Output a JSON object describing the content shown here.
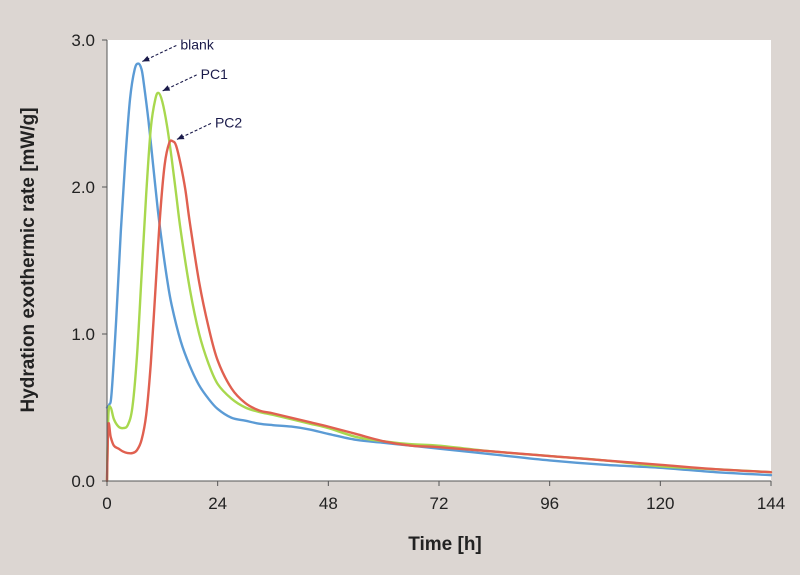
{
  "chart_data": {
    "type": "line",
    "title": "",
    "xlabel": "Time [h]",
    "ylabel": "Hydration exothermic rate [mW/g]",
    "xlim": [
      0,
      144
    ],
    "ylim": [
      0,
      3.0
    ],
    "xticks": [
      0,
      24,
      48,
      72,
      96,
      120,
      144
    ],
    "xtick_labels": [
      "0",
      "24",
      "48",
      "72",
      "96",
      "120",
      "144"
    ],
    "yticks": [
      0,
      1.0,
      2.0,
      3.0
    ],
    "ytick_labels": [
      "0.0",
      "1.0",
      "2.0",
      "3.0"
    ],
    "grid": false,
    "background": "#dcd6d2",
    "plot_background": "#ffffff",
    "series": [
      {
        "name": "blank",
        "color": "#5b9bd5",
        "x": [
          0,
          0.5,
          1,
          2,
          3,
          4,
          5,
          6,
          6.8,
          7.5,
          8,
          9,
          10,
          11,
          12,
          13,
          14,
          16,
          18,
          20,
          22,
          24,
          27,
          30,
          33,
          36,
          40,
          44,
          48,
          54,
          60,
          66,
          72,
          84,
          96,
          108,
          120,
          132,
          144
        ],
        "y": [
          0.5,
          0.52,
          0.6,
          1.1,
          1.7,
          2.2,
          2.6,
          2.8,
          2.84,
          2.8,
          2.7,
          2.45,
          2.15,
          1.85,
          1.6,
          1.38,
          1.2,
          0.95,
          0.78,
          0.65,
          0.56,
          0.49,
          0.43,
          0.41,
          0.39,
          0.38,
          0.37,
          0.35,
          0.32,
          0.28,
          0.26,
          0.24,
          0.22,
          0.18,
          0.14,
          0.11,
          0.09,
          0.06,
          0.04
        ]
      },
      {
        "name": "PC1",
        "color": "#a8d84e",
        "x": [
          0,
          0.3,
          0.8,
          1.5,
          2.5,
          3.5,
          4.5,
          5.5,
          6.5,
          7.5,
          8.5,
          9.5,
          10.5,
          11.2,
          12,
          13,
          14,
          15,
          16,
          18,
          20,
          22,
          24,
          27,
          30,
          33,
          36,
          40,
          44,
          48,
          54,
          60,
          66,
          72,
          84,
          96,
          108,
          120,
          132,
          144
        ],
        "y": [
          0,
          0.45,
          0.5,
          0.42,
          0.37,
          0.36,
          0.38,
          0.5,
          0.85,
          1.4,
          1.95,
          2.4,
          2.6,
          2.64,
          2.58,
          2.42,
          2.2,
          1.95,
          1.7,
          1.3,
          1.0,
          0.8,
          0.66,
          0.56,
          0.5,
          0.47,
          0.45,
          0.42,
          0.39,
          0.36,
          0.3,
          0.27,
          0.25,
          0.24,
          0.2,
          0.17,
          0.14,
          0.1,
          0.08,
          0.06
        ]
      },
      {
        "name": "PC2",
        "color": "#e06050",
        "x": [
          0,
          0.3,
          0.8,
          1.5,
          2.5,
          3.5,
          4.5,
          5.5,
          6.5,
          7.5,
          8.5,
          9.5,
          10.5,
          11.5,
          12.5,
          13.5,
          14.3,
          15,
          16,
          17,
          18,
          20,
          22,
          24,
          27,
          30,
          33,
          36,
          40,
          44,
          48,
          54,
          60,
          66,
          72,
          84,
          96,
          108,
          120,
          132,
          144
        ],
        "y": [
          0,
          0.38,
          0.3,
          0.24,
          0.22,
          0.2,
          0.19,
          0.19,
          0.21,
          0.28,
          0.45,
          0.8,
          1.3,
          1.8,
          2.15,
          2.3,
          2.31,
          2.28,
          2.15,
          1.98,
          1.75,
          1.35,
          1.05,
          0.82,
          0.63,
          0.53,
          0.48,
          0.46,
          0.43,
          0.4,
          0.37,
          0.32,
          0.27,
          0.24,
          0.23,
          0.2,
          0.17,
          0.14,
          0.11,
          0.08,
          0.06
        ]
      }
    ],
    "annotations": [
      {
        "text": "blank",
        "target_x": 6.8,
        "target_y": 2.84
      },
      {
        "text": "PC1",
        "target_x": 11.2,
        "target_y": 2.64
      },
      {
        "text": "PC2",
        "target_x": 14.3,
        "target_y": 2.31
      }
    ]
  }
}
